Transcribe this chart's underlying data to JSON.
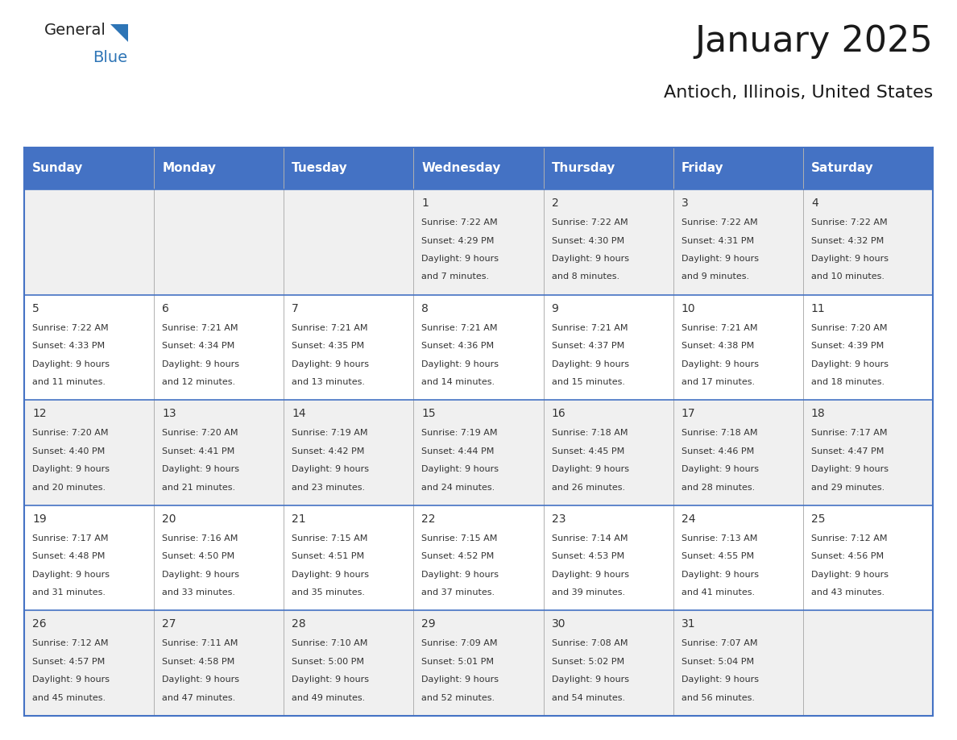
{
  "title": "January 2025",
  "subtitle": "Antioch, Illinois, United States",
  "header_bg_color": "#4472c4",
  "header_text_color": "#ffffff",
  "odd_row_bg": "#f0f0f0",
  "even_row_bg": "#ffffff",
  "day_headers": [
    "Sunday",
    "Monday",
    "Tuesday",
    "Wednesday",
    "Thursday",
    "Friday",
    "Saturday"
  ],
  "grid_line_color": "#4472c4",
  "cell_text_color": "#333333",
  "title_color": "#1a1a1a",
  "subtitle_color": "#1a1a1a",
  "days": [
    {
      "day": null,
      "col": 0,
      "row": 0
    },
    {
      "day": null,
      "col": 1,
      "row": 0
    },
    {
      "day": null,
      "col": 2,
      "row": 0
    },
    {
      "day": 1,
      "col": 3,
      "row": 0,
      "sunrise": "7:22 AM",
      "sunset": "4:29 PM",
      "daylight": "9 hours and 7 minutes."
    },
    {
      "day": 2,
      "col": 4,
      "row": 0,
      "sunrise": "7:22 AM",
      "sunset": "4:30 PM",
      "daylight": "9 hours and 8 minutes."
    },
    {
      "day": 3,
      "col": 5,
      "row": 0,
      "sunrise": "7:22 AM",
      "sunset": "4:31 PM",
      "daylight": "9 hours and 9 minutes."
    },
    {
      "day": 4,
      "col": 6,
      "row": 0,
      "sunrise": "7:22 AM",
      "sunset": "4:32 PM",
      "daylight": "9 hours and 10 minutes."
    },
    {
      "day": 5,
      "col": 0,
      "row": 1,
      "sunrise": "7:22 AM",
      "sunset": "4:33 PM",
      "daylight": "9 hours and 11 minutes."
    },
    {
      "day": 6,
      "col": 1,
      "row": 1,
      "sunrise": "7:21 AM",
      "sunset": "4:34 PM",
      "daylight": "9 hours and 12 minutes."
    },
    {
      "day": 7,
      "col": 2,
      "row": 1,
      "sunrise": "7:21 AM",
      "sunset": "4:35 PM",
      "daylight": "9 hours and 13 minutes."
    },
    {
      "day": 8,
      "col": 3,
      "row": 1,
      "sunrise": "7:21 AM",
      "sunset": "4:36 PM",
      "daylight": "9 hours and 14 minutes."
    },
    {
      "day": 9,
      "col": 4,
      "row": 1,
      "sunrise": "7:21 AM",
      "sunset": "4:37 PM",
      "daylight": "9 hours and 15 minutes."
    },
    {
      "day": 10,
      "col": 5,
      "row": 1,
      "sunrise": "7:21 AM",
      "sunset": "4:38 PM",
      "daylight": "9 hours and 17 minutes."
    },
    {
      "day": 11,
      "col": 6,
      "row": 1,
      "sunrise": "7:20 AM",
      "sunset": "4:39 PM",
      "daylight": "9 hours and 18 minutes."
    },
    {
      "day": 12,
      "col": 0,
      "row": 2,
      "sunrise": "7:20 AM",
      "sunset": "4:40 PM",
      "daylight": "9 hours and 20 minutes."
    },
    {
      "day": 13,
      "col": 1,
      "row": 2,
      "sunrise": "7:20 AM",
      "sunset": "4:41 PM",
      "daylight": "9 hours and 21 minutes."
    },
    {
      "day": 14,
      "col": 2,
      "row": 2,
      "sunrise": "7:19 AM",
      "sunset": "4:42 PM",
      "daylight": "9 hours and 23 minutes."
    },
    {
      "day": 15,
      "col": 3,
      "row": 2,
      "sunrise": "7:19 AM",
      "sunset": "4:44 PM",
      "daylight": "9 hours and 24 minutes."
    },
    {
      "day": 16,
      "col": 4,
      "row": 2,
      "sunrise": "7:18 AM",
      "sunset": "4:45 PM",
      "daylight": "9 hours and 26 minutes."
    },
    {
      "day": 17,
      "col": 5,
      "row": 2,
      "sunrise": "7:18 AM",
      "sunset": "4:46 PM",
      "daylight": "9 hours and 28 minutes."
    },
    {
      "day": 18,
      "col": 6,
      "row": 2,
      "sunrise": "7:17 AM",
      "sunset": "4:47 PM",
      "daylight": "9 hours and 29 minutes."
    },
    {
      "day": 19,
      "col": 0,
      "row": 3,
      "sunrise": "7:17 AM",
      "sunset": "4:48 PM",
      "daylight": "9 hours and 31 minutes."
    },
    {
      "day": 20,
      "col": 1,
      "row": 3,
      "sunrise": "7:16 AM",
      "sunset": "4:50 PM",
      "daylight": "9 hours and 33 minutes."
    },
    {
      "day": 21,
      "col": 2,
      "row": 3,
      "sunrise": "7:15 AM",
      "sunset": "4:51 PM",
      "daylight": "9 hours and 35 minutes."
    },
    {
      "day": 22,
      "col": 3,
      "row": 3,
      "sunrise": "7:15 AM",
      "sunset": "4:52 PM",
      "daylight": "9 hours and 37 minutes."
    },
    {
      "day": 23,
      "col": 4,
      "row": 3,
      "sunrise": "7:14 AM",
      "sunset": "4:53 PM",
      "daylight": "9 hours and 39 minutes."
    },
    {
      "day": 24,
      "col": 5,
      "row": 3,
      "sunrise": "7:13 AM",
      "sunset": "4:55 PM",
      "daylight": "9 hours and 41 minutes."
    },
    {
      "day": 25,
      "col": 6,
      "row": 3,
      "sunrise": "7:12 AM",
      "sunset": "4:56 PM",
      "daylight": "9 hours and 43 minutes."
    },
    {
      "day": 26,
      "col": 0,
      "row": 4,
      "sunrise": "7:12 AM",
      "sunset": "4:57 PM",
      "daylight": "9 hours and 45 minutes."
    },
    {
      "day": 27,
      "col": 1,
      "row": 4,
      "sunrise": "7:11 AM",
      "sunset": "4:58 PM",
      "daylight": "9 hours and 47 minutes."
    },
    {
      "day": 28,
      "col": 2,
      "row": 4,
      "sunrise": "7:10 AM",
      "sunset": "5:00 PM",
      "daylight": "9 hours and 49 minutes."
    },
    {
      "day": 29,
      "col": 3,
      "row": 4,
      "sunrise": "7:09 AM",
      "sunset": "5:01 PM",
      "daylight": "9 hours and 52 minutes."
    },
    {
      "day": 30,
      "col": 4,
      "row": 4,
      "sunrise": "7:08 AM",
      "sunset": "5:02 PM",
      "daylight": "9 hours and 54 minutes."
    },
    {
      "day": 31,
      "col": 5,
      "row": 4,
      "sunrise": "7:07 AM",
      "sunset": "5:04 PM",
      "daylight": "9 hours and 56 minutes."
    },
    {
      "day": null,
      "col": 6,
      "row": 4
    }
  ]
}
